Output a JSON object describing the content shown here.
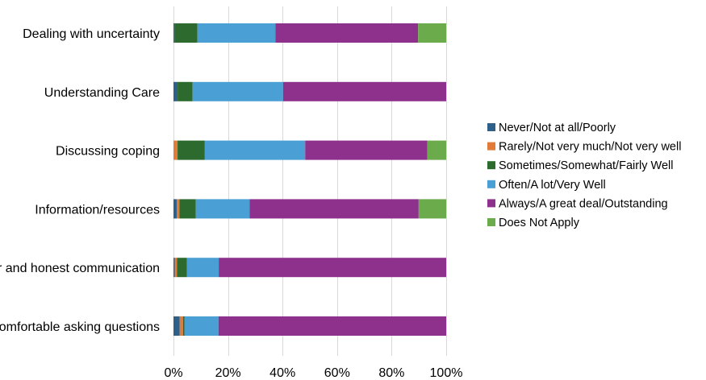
{
  "chart_data": {
    "type": "bar",
    "orientation": "horizontal",
    "stacked": "percent",
    "categories": [
      "Dealing with uncertainty",
      "Understanding Care",
      "Discussing coping",
      "Information/resources",
      "Clear and honest communication",
      "Comfortable asking questions"
    ],
    "series": [
      {
        "name": "Never/Not at all/Poorly",
        "color": "#2e6089",
        "values": [
          0.4,
          1.5,
          0,
          1.2,
          0.5,
          2.3
        ]
      },
      {
        "name": "Rarely/Not very much/Not very well",
        "color": "#e07b39",
        "values": [
          0,
          0,
          1.5,
          1.0,
          0.8,
          1.2
        ]
      },
      {
        "name": "Sometimes/Somewhat/Fairly Well",
        "color": "#2d6a2e",
        "values": [
          8.4,
          5.5,
          10.0,
          6.0,
          3.6,
          0.5
        ]
      },
      {
        "name": "Often/A lot/Very Well",
        "color": "#4a9fd4",
        "values": [
          28.6,
          33.2,
          36.8,
          19.7,
          11.7,
          12.5
        ]
      },
      {
        "name": "Always/A great deal/Outstanding",
        "color": "#8e318c",
        "values": [
          52.3,
          59.8,
          44.8,
          62.0,
          83.4,
          83.5
        ]
      },
      {
        "name": "Does Not Apply",
        "color": "#6bab4b",
        "values": [
          10.3,
          0,
          6.9,
          10.1,
          0,
          0
        ]
      }
    ],
    "xlim": [
      0,
      100
    ],
    "x_ticks": [
      "0%",
      "20%",
      "40%",
      "60%",
      "80%",
      "100%"
    ],
    "grid": "vertical",
    "legend_position": "right"
  }
}
